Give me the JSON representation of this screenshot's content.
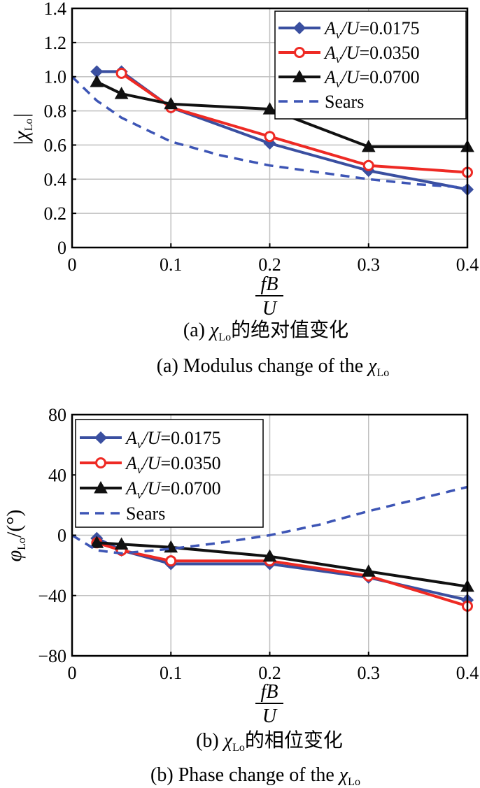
{
  "colors": {
    "blue": "#3a4fa0",
    "red": "#ee2a24",
    "black": "#111111",
    "sears": "#3d55b5",
    "grid": "#c0c0c0"
  },
  "chart_data": [
    {
      "type": "line",
      "ylabel": "|χLo|",
      "xlabel": "fB/U",
      "xlim": [
        0,
        0.4
      ],
      "ylim": [
        0,
        1.4
      ],
      "xticks": [
        "0",
        "0.1",
        "0.2",
        "0.3",
        "0.4"
      ],
      "yticks": [
        "0",
        "0.2",
        "0.4",
        "0.6",
        "0.8",
        "1.0",
        "1.2",
        "1.4"
      ],
      "grid": true,
      "legend_position": "top-right",
      "series": [
        {
          "name": "Av/U=0.0175",
          "x": [
            0.025,
            0.05,
            0.1,
            0.2,
            0.3,
            0.4
          ],
          "y": [
            1.03,
            1.03,
            0.82,
            0.61,
            0.45,
            0.34
          ],
          "marker": "diamond",
          "color": "#3a4fa0",
          "style": "solid"
        },
        {
          "name": "Av/U=0.0350",
          "x": [
            0.05,
            0.1,
            0.2,
            0.3,
            0.4
          ],
          "y": [
            1.02,
            0.82,
            0.65,
            0.48,
            0.44
          ],
          "marker": "circle",
          "color": "#ee2a24",
          "style": "solid"
        },
        {
          "name": "Av/U=0.0700",
          "x": [
            0.025,
            0.05,
            0.1,
            0.2,
            0.3,
            0.4
          ],
          "y": [
            0.97,
            0.9,
            0.84,
            0.81,
            0.59,
            0.59
          ],
          "marker": "triangle",
          "color": "#111111",
          "style": "solid"
        },
        {
          "name": "Sears",
          "x": [
            0,
            0.025,
            0.05,
            0.1,
            0.15,
            0.2,
            0.25,
            0.3,
            0.35,
            0.4
          ],
          "y": [
            1.0,
            0.86,
            0.76,
            0.62,
            0.54,
            0.48,
            0.44,
            0.4,
            0.37,
            0.35
          ],
          "marker": "none",
          "color": "#3d55b5",
          "style": "dashed"
        }
      ],
      "caption_zh": "(a) χLo的绝对值变化",
      "caption_en": "(a) Modulus change of the χLo"
    },
    {
      "type": "line",
      "ylabel": "φLo/(°)",
      "xlabel": "fB/U",
      "xlim": [
        0,
        0.4
      ],
      "ylim": [
        -80,
        80
      ],
      "xticks": [
        "0",
        "0.1",
        "0.2",
        "0.3",
        "0.4"
      ],
      "yticks": [
        "−80",
        "−40",
        "0",
        "40",
        "80"
      ],
      "grid": true,
      "legend_position": "top-left",
      "series": [
        {
          "name": "Av/U=0.0175",
          "x": [
            0.025,
            0.05,
            0.1,
            0.2,
            0.3,
            0.4
          ],
          "y": [
            -2,
            -10,
            -19,
            -19,
            -28,
            -43
          ],
          "marker": "diamond",
          "color": "#3a4fa0",
          "style": "solid"
        },
        {
          "name": "Av/U=0.0350",
          "x": [
            0.025,
            0.05,
            0.1,
            0.2,
            0.3,
            0.4
          ],
          "y": [
            -5,
            -10,
            -17,
            -17,
            -27,
            -47
          ],
          "marker": "circle",
          "color": "#ee2a24",
          "style": "solid"
        },
        {
          "name": "Av/U=0.0700",
          "x": [
            0.025,
            0.05,
            0.1,
            0.2,
            0.3,
            0.4
          ],
          "y": [
            -5,
            -6,
            -8,
            -14,
            -24,
            -34
          ],
          "marker": "triangle",
          "color": "#111111",
          "style": "solid"
        },
        {
          "name": "Sears",
          "x": [
            0,
            0.025,
            0.05,
            0.1,
            0.15,
            0.2,
            0.25,
            0.3,
            0.35,
            0.4
          ],
          "y": [
            0,
            -10,
            -12,
            -9,
            -5,
            0,
            7,
            16,
            24,
            32
          ],
          "marker": "none",
          "color": "#3d55b5",
          "style": "dashed"
        }
      ],
      "caption_zh": "(b) χLo的相位变化",
      "caption_en": "(b) Phase change of the χLo"
    }
  ]
}
